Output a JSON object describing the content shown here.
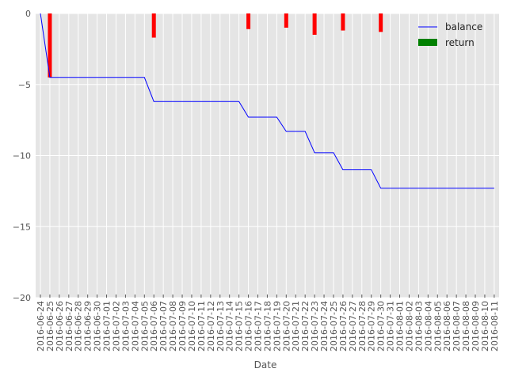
{
  "chart_data": {
    "type": "line",
    "title": "",
    "xlabel": "Date",
    "ylabel": "",
    "ylim": [
      -20,
      0
    ],
    "yticks": [
      0,
      -5,
      -10,
      -15,
      -20
    ],
    "ytick_labels": [
      "0",
      "−5",
      "−10",
      "−15",
      "−20"
    ],
    "grid": true,
    "legend_position": "top-right",
    "x": [
      "2016-06-24",
      "2016-06-25",
      "2016-06-26",
      "2016-06-27",
      "2016-06-28",
      "2016-06-29",
      "2016-06-30",
      "2016-07-01",
      "2016-07-02",
      "2016-07-03",
      "2016-07-04",
      "2016-07-05",
      "2016-07-06",
      "2016-07-07",
      "2016-07-08",
      "2016-07-09",
      "2016-07-10",
      "2016-07-11",
      "2016-07-12",
      "2016-07-13",
      "2016-07-14",
      "2016-07-15",
      "2016-07-16",
      "2016-07-17",
      "2016-07-18",
      "2016-07-19",
      "2016-07-20",
      "2016-07-21",
      "2016-07-22",
      "2016-07-23",
      "2016-07-24",
      "2016-07-25",
      "2016-07-26",
      "2016-07-27",
      "2016-07-28",
      "2016-07-29",
      "2016-07-30",
      "2016-07-31",
      "2016-08-01",
      "2016-08-02",
      "2016-08-03",
      "2016-08-04",
      "2016-08-05",
      "2016-08-06",
      "2016-08-07",
      "2016-08-08",
      "2016-08-09",
      "2016-08-10",
      "2016-08-11"
    ],
    "series": [
      {
        "name": "balance",
        "kind": "line",
        "color": "#0000ff",
        "values": [
          0,
          -4.5,
          -4.5,
          -4.5,
          -4.5,
          -4.5,
          -4.5,
          -4.5,
          -4.5,
          -4.5,
          -4.5,
          -4.5,
          -6.2,
          -6.2,
          -6.2,
          -6.2,
          -6.2,
          -6.2,
          -6.2,
          -6.2,
          -6.2,
          -6.2,
          -7.3,
          -7.3,
          -7.3,
          -7.3,
          -8.3,
          -8.3,
          -8.3,
          -9.8,
          -9.8,
          -9.8,
          -11.0,
          -11.0,
          -11.0,
          -11.0,
          -12.3,
          -12.3,
          -12.3,
          -12.3,
          -12.3,
          -12.3,
          -12.3,
          -12.3,
          -12.3,
          -12.3,
          -12.3,
          -12.3,
          -12.3
        ]
      },
      {
        "name": "return",
        "kind": "bar",
        "color": "#008000",
        "bar_color": "#ff0000",
        "values": [
          0,
          -4.5,
          0,
          0,
          0,
          0,
          0,
          0,
          0,
          0,
          0,
          0,
          -1.7,
          0,
          0,
          0,
          0,
          0,
          0,
          0,
          0,
          0,
          -1.1,
          0,
          0,
          0,
          -1.0,
          0,
          0,
          -1.5,
          0,
          0,
          -1.2,
          0,
          0,
          0,
          -1.3,
          0,
          0,
          0,
          0,
          0,
          0,
          0,
          0,
          0,
          0,
          0,
          0
        ]
      }
    ]
  }
}
